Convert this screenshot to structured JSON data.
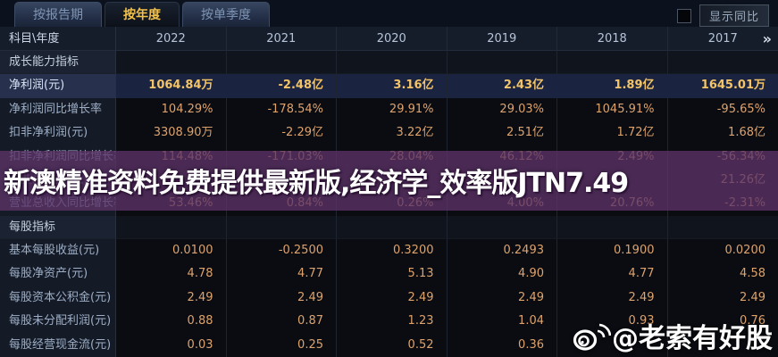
{
  "tabs": [
    {
      "label": "按报告期",
      "active": false
    },
    {
      "label": "按年度",
      "active": true
    },
    {
      "label": "按单季度",
      "active": false
    }
  ],
  "toolbar": {
    "compare_label": "显示同比",
    "checkbox_checked": false
  },
  "table": {
    "corner_label": "科目\\年度",
    "years": [
      "2022",
      "2021",
      "2020",
      "2019",
      "2018",
      "2017"
    ],
    "more_icon": "»",
    "rows": [
      {
        "type": "section",
        "label": "成长能力指标"
      },
      {
        "type": "data",
        "highlight": true,
        "label": "净利润(元)",
        "values": [
          "1064.84万",
          "-2.48亿",
          "3.16亿",
          "2.43亿",
          "1.89亿",
          "1645.01万"
        ]
      },
      {
        "type": "data",
        "highlight": false,
        "label": "净利润同比增长率",
        "values": [
          "104.29%",
          "-178.54%",
          "29.91%",
          "29.03%",
          "1045.91%",
          "-95.65%"
        ]
      },
      {
        "type": "data",
        "highlight": false,
        "label": "扣非净利润(元)",
        "values": [
          "3308.90万",
          "-2.29亿",
          "3.22亿",
          "2.51亿",
          "1.72亿",
          "1.68亿"
        ]
      },
      {
        "type": "data",
        "highlight": false,
        "label": "扣非净利润同比增长率",
        "values": [
          "114.48%",
          "-171.03%",
          "28.04%",
          "46.12%",
          "2.49%",
          "-56.34%"
        ]
      },
      {
        "type": "data",
        "highlight": false,
        "label": "营业总收入(元)",
        "values": [
          "",
          "",
          "",
          "",
          "",
          "21.26亿"
        ]
      },
      {
        "type": "data",
        "highlight": false,
        "label": "营业总收入同比增长率",
        "values": [
          "53.46%",
          "0.84%",
          "0.26%",
          "4.00%",
          "20.76%",
          "-2.31%"
        ]
      },
      {
        "type": "section",
        "label": "每股指标"
      },
      {
        "type": "data",
        "highlight": false,
        "label": "基本每股收益(元)",
        "values": [
          "0.0100",
          "-0.2500",
          "0.3200",
          "0.2493",
          "0.1900",
          "0.0200"
        ]
      },
      {
        "type": "data",
        "highlight": false,
        "label": "每股净资产(元)",
        "values": [
          "4.78",
          "4.77",
          "5.13",
          "4.90",
          "4.77",
          "4.58"
        ]
      },
      {
        "type": "data",
        "highlight": false,
        "label": "每股资本公积金(元)",
        "values": [
          "2.49",
          "2.49",
          "2.49",
          "2.49",
          "2.49",
          "2.49"
        ]
      },
      {
        "type": "data",
        "highlight": false,
        "label": "每股未分配利润(元)",
        "values": [
          "0.88",
          "0.87",
          "1.23",
          "1.04",
          "0.93",
          "0.76"
        ]
      },
      {
        "type": "data",
        "highlight": false,
        "label": "每股经营现金流(元)",
        "values": [
          "0.03",
          "0.25",
          "0.52",
          "0.36",
          "",
          ""
        ]
      }
    ]
  },
  "watermarks": {
    "banner_text": "新澳精准资料免费提供最新版,经济学_效率版JTN7.49",
    "credit_text": "@老索有好股",
    "weibo_icon": "weibo-eye-icon"
  },
  "colors": {
    "accent_gold": "#f2c14b",
    "value_orange": "#dda36d",
    "highlight_row_bg": "#1a2340",
    "watermark_purple": "rgba(92,51,104,0.78)",
    "background": "#0a0d13"
  }
}
